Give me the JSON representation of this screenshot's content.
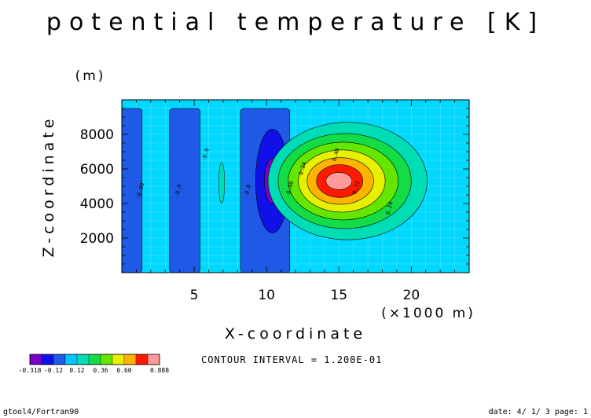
{
  "chart_data": {
    "type": "heatmap",
    "title": "potential temperature [K]",
    "xlabel": "X-coordinate",
    "x_unit": "(×1000 m)",
    "ylabel": "Z-coordinate",
    "y_unit": "(m)",
    "xlim": [
      0,
      24
    ],
    "ylim": [
      0,
      10000
    ],
    "x_ticks": [
      5,
      10,
      15,
      20
    ],
    "y_ticks": [
      2000,
      4000,
      6000,
      8000
    ],
    "contour_labels": [
      {
        "text": "-0.00",
        "x": 1.4,
        "y": 4700
      },
      {
        "text": "-0.0",
        "x": 4.0,
        "y": 4700
      },
      {
        "text": "-0.0",
        "x": 5.9,
        "y": 6800
      },
      {
        "text": "-0.0",
        "x": 8.8,
        "y": 4700
      },
      {
        "text": "-0.00",
        "x": 11.7,
        "y": 4800
      },
      {
        "text": "0.24",
        "x": 12.6,
        "y": 6000
      },
      {
        "text": "0.48",
        "x": 14.9,
        "y": 6800
      },
      {
        "text": "0.72",
        "x": 16.3,
        "y": 4900
      },
      {
        "text": "0.24",
        "x": 18.6,
        "y": 3700
      }
    ],
    "warm_bubble": {
      "center_x": 15.0,
      "center_z": 5300,
      "max": 0.888
    },
    "cold_anomaly": {
      "center_x": 10.4,
      "center_z": 5300,
      "min": -0.318
    },
    "contour_interval": "CONTOUR INTERVAL = 1.200E-01",
    "colorbar": {
      "levels": [
        -0.318,
        -0.24,
        -0.12,
        0.0,
        0.12,
        0.24,
        0.36,
        0.48,
        0.6,
        0.72,
        0.888
      ],
      "tick_labels": [
        "-0.318",
        "-0.12",
        "0.12",
        "0.36",
        "0.60",
        "0.888"
      ],
      "colors": [
        "#7a00c8",
        "#1010e8",
        "#1e5ae6",
        "#00c8ff",
        "#00dcb4",
        "#14dc46",
        "#64e600",
        "#e6f000",
        "#ffb400",
        "#ff1a00",
        "#ff9a9a"
      ]
    }
  },
  "footer": {
    "left": "gtool4/Fortran90",
    "right": "date: 4/ 1/ 3 page: 1"
  }
}
